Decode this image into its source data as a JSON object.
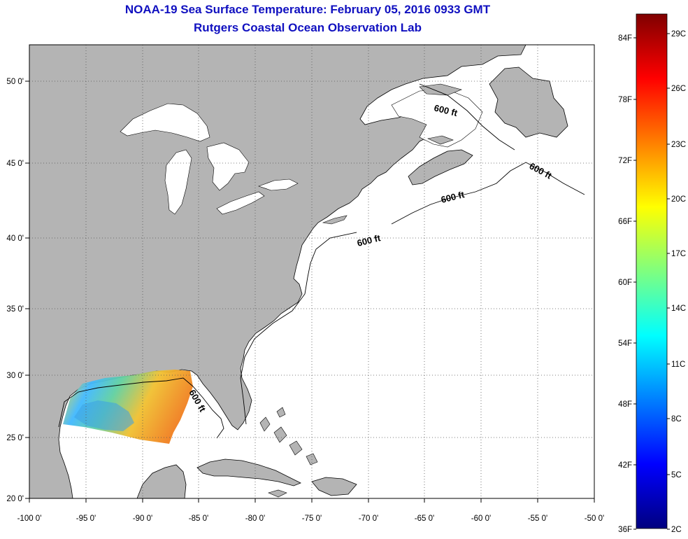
{
  "header": {
    "title": "NOAA-19 Sea Surface Temperature:  February 05, 2016 0933 GMT",
    "subtitle": "Rutgers Coastal Ocean Observation Lab"
  },
  "map": {
    "lon_ticks": [
      "-100 0'",
      "-95 0'",
      "-90 0'",
      "-85 0'",
      "-80 0'",
      "-75 0'",
      "-70 0'",
      "-65 0'",
      "-60 0'",
      "-55 0'",
      "-50 0'"
    ],
    "lat_ticks": [
      "50 0'",
      "45 0'",
      "40 0'",
      "35 0'",
      "30 0'",
      "25 0'",
      "20 0'"
    ],
    "contour_labels": [
      "600 ft",
      "600 ft",
      "600 ft",
      "600 ft",
      "600 ft"
    ],
    "colors": {
      "land": "#b4b4b4",
      "water": "#ffffff",
      "coast": "#000000",
      "grid": "#555555"
    }
  },
  "colorbar": {
    "fahrenheit_labels": [
      "84F",
      "78F",
      "72F",
      "66F",
      "60F",
      "54F",
      "48F",
      "42F",
      "36F"
    ],
    "celsius_labels": [
      "29C",
      "26C",
      "23C",
      "20C",
      "17C",
      "14C",
      "11C",
      "8C",
      "5C",
      "2C"
    ],
    "colors": [
      "#00007f",
      "#0000ff",
      "#007fff",
      "#00ffff",
      "#7fff7f",
      "#ffff00",
      "#ff7f00",
      "#ff0000",
      "#7f0000"
    ]
  }
}
